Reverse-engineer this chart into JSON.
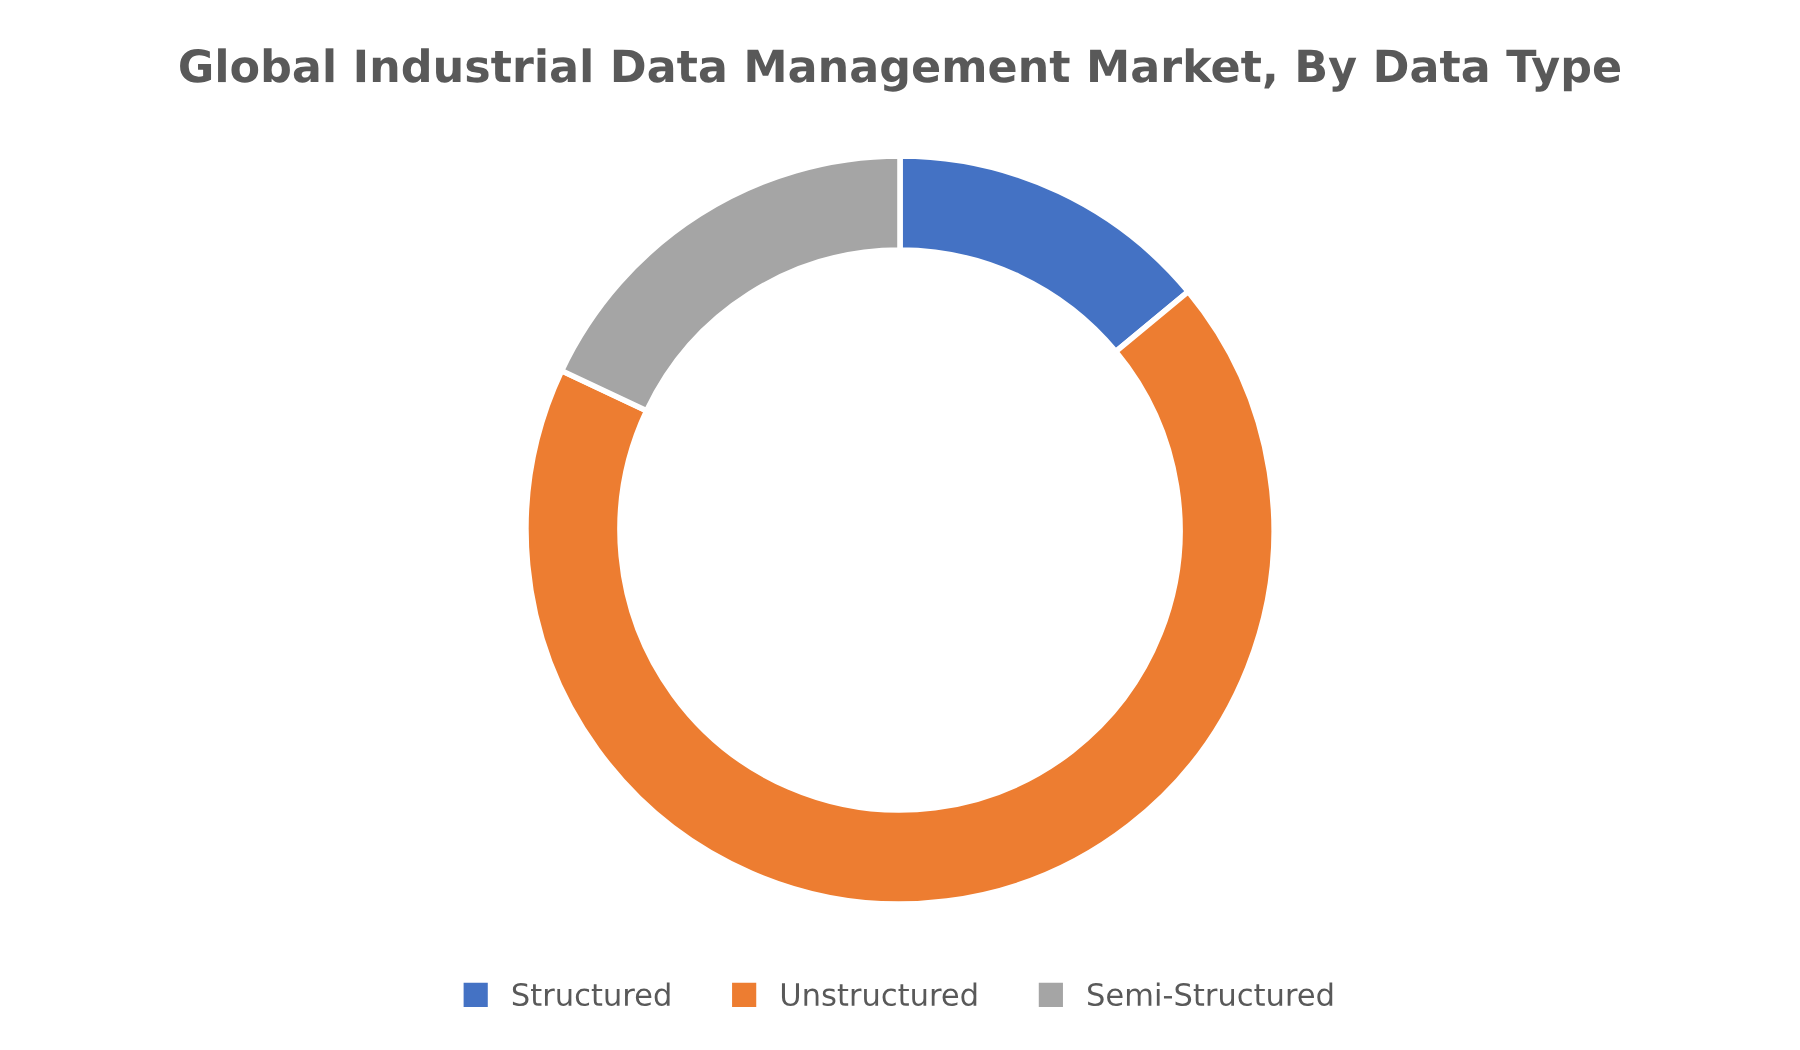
{
  "chart_data": {
    "type": "donut",
    "title": "Global Industrial Data Management Market, By Data Type",
    "categories": [
      "Structured",
      "Unstructured",
      "Semi-Structured"
    ],
    "values": [
      14,
      68,
      18
    ],
    "colors": [
      "#4472c4",
      "#ed7d31",
      "#a5a5a5"
    ],
    "legend": "bottom"
  }
}
